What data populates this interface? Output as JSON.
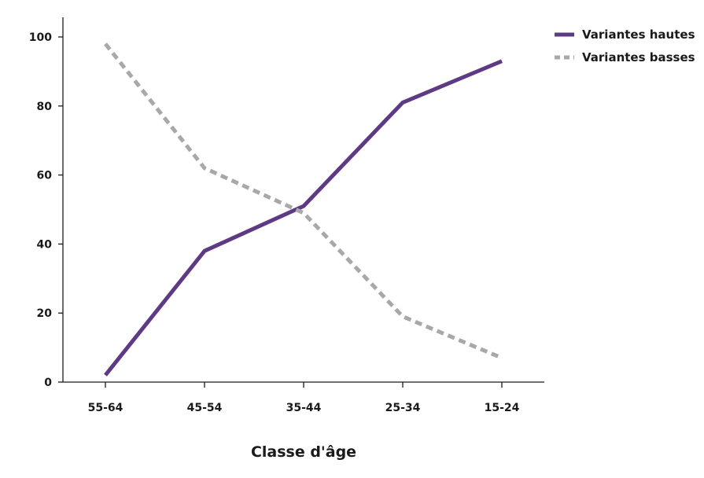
{
  "chart_data": {
    "type": "line",
    "title": "",
    "xlabel": "Classe d'âge",
    "ylabel": "",
    "categories": [
      "55-64",
      "45-54",
      "35-44",
      "25-34",
      "15-24"
    ],
    "ylim": [
      0,
      100
    ],
    "yticks": [
      "0",
      "20",
      "40",
      "60",
      "80",
      "100"
    ],
    "grid": false,
    "legend_position": "top-right",
    "series": [
      {
        "name": "Variantes hautes",
        "values": [
          2,
          38,
          51,
          81,
          93
        ],
        "color": "#5e3a85",
        "style": "solid"
      },
      {
        "name": "Variantes basses",
        "values": [
          98,
          62,
          49,
          19,
          7
        ],
        "color": "#a8a8a8",
        "style": "dashed"
      }
    ]
  }
}
